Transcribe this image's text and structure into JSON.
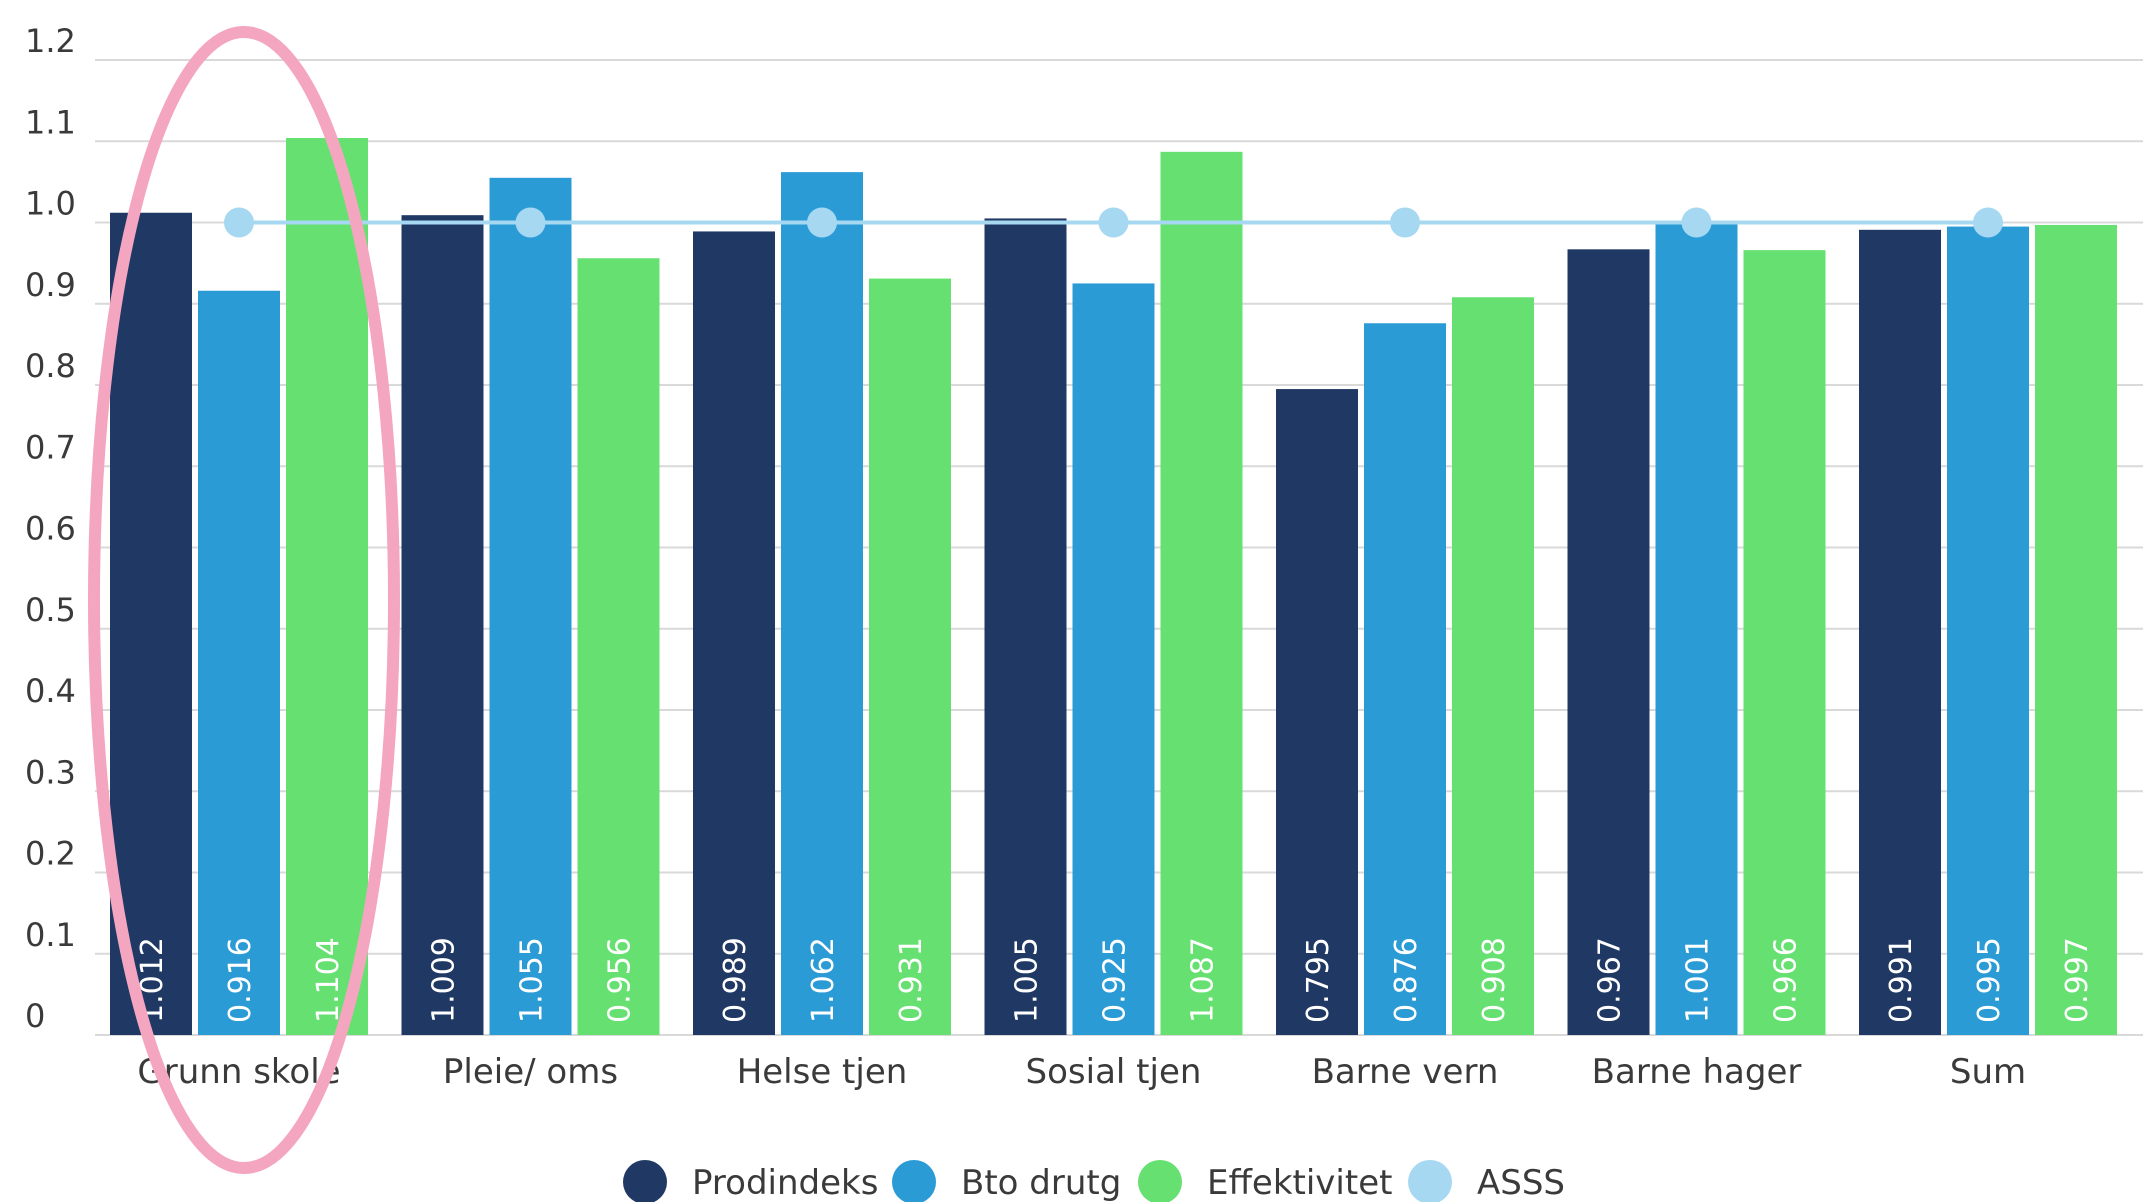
{
  "chart_data": {
    "type": "bar",
    "categories": [
      "Grunn skole",
      "Pleie/ oms",
      "Helse tjen",
      "Sosial tjen",
      "Barne vern",
      "Barne hager",
      "Sum"
    ],
    "series": [
      {
        "name": "Prodindeks",
        "kind": "bar",
        "color": "#203864",
        "values": [
          1.012,
          1.009,
          0.989,
          1.005,
          0.795,
          0.967,
          0.991
        ],
        "labels": [
          "1.012",
          "1.009",
          "0.989",
          "1.005",
          "0.795",
          "0.967",
          "0.991"
        ]
      },
      {
        "name": "Bto drutg",
        "kind": "bar",
        "color": "#2b9bd6",
        "values": [
          0.916,
          1.055,
          1.062,
          0.925,
          0.876,
          1.001,
          0.995
        ],
        "labels": [
          "0.916",
          "1.055",
          "1.062",
          "0.925",
          "0.876",
          "1.001",
          "0.995"
        ]
      },
      {
        "name": "Effektivitet",
        "kind": "bar",
        "color": "#66e070",
        "values": [
          1.104,
          0.956,
          0.931,
          1.087,
          0.908,
          0.966,
          0.997
        ],
        "labels": [
          "1.104",
          "0.956",
          "0.931",
          "1.087",
          "0.908",
          "0.966",
          "0.997"
        ]
      },
      {
        "name": "ASSS",
        "kind": "line",
        "color": "#a6d8f2",
        "values": [
          1.0,
          1.0,
          1.0,
          1.0,
          1.0,
          1.0,
          1.0
        ]
      }
    ],
    "yticks": [
      "0",
      "0.1",
      "0.2",
      "0.3",
      "0.4",
      "0.5",
      "0.6",
      "0.7",
      "0.8",
      "0.9",
      "1.0",
      "1.1",
      "1.2"
    ],
    "ylim": [
      0,
      1.2
    ],
    "grid": true,
    "legend_position": "bottom",
    "highlight": {
      "category": "Grunn skole",
      "shape": "ellipse",
      "color": "#f4a6c1"
    },
    "title": "",
    "xlabel": "",
    "ylabel": ""
  }
}
